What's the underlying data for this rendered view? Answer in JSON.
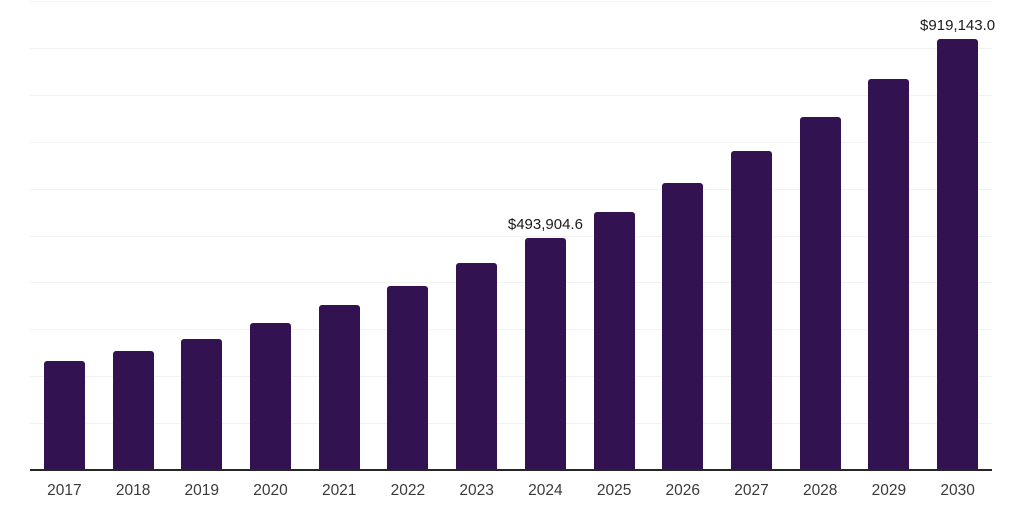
{
  "chart_data": {
    "type": "bar",
    "title": "",
    "xlabel": "",
    "ylabel": "",
    "categories": [
      "2017",
      "2018",
      "2019",
      "2020",
      "2021",
      "2022",
      "2023",
      "2024",
      "2025",
      "2026",
      "2027",
      "2028",
      "2029",
      "2030"
    ],
    "values": [
      232000,
      253000,
      279000,
      313000,
      351000,
      393000,
      441500,
      493904.6,
      551000,
      612000,
      680000,
      753000,
      834000,
      919143.0
    ],
    "annotations": [
      {
        "category": "2024",
        "text": "$493,904.6"
      },
      {
        "category": "2030",
        "text": "$919,143.0"
      }
    ],
    "ylim": [
      0,
      1000000
    ],
    "gridline_step": 100000,
    "grid": true,
    "y_tick_labels_shown": false,
    "legend_position": "none",
    "colors": {
      "bar": "#331251",
      "gridline": "#f2f2f2",
      "axis_line": "#262626",
      "tick_label": "#3a3a3a",
      "data_label": "#1a1a1a",
      "background": "#ffffff"
    }
  }
}
